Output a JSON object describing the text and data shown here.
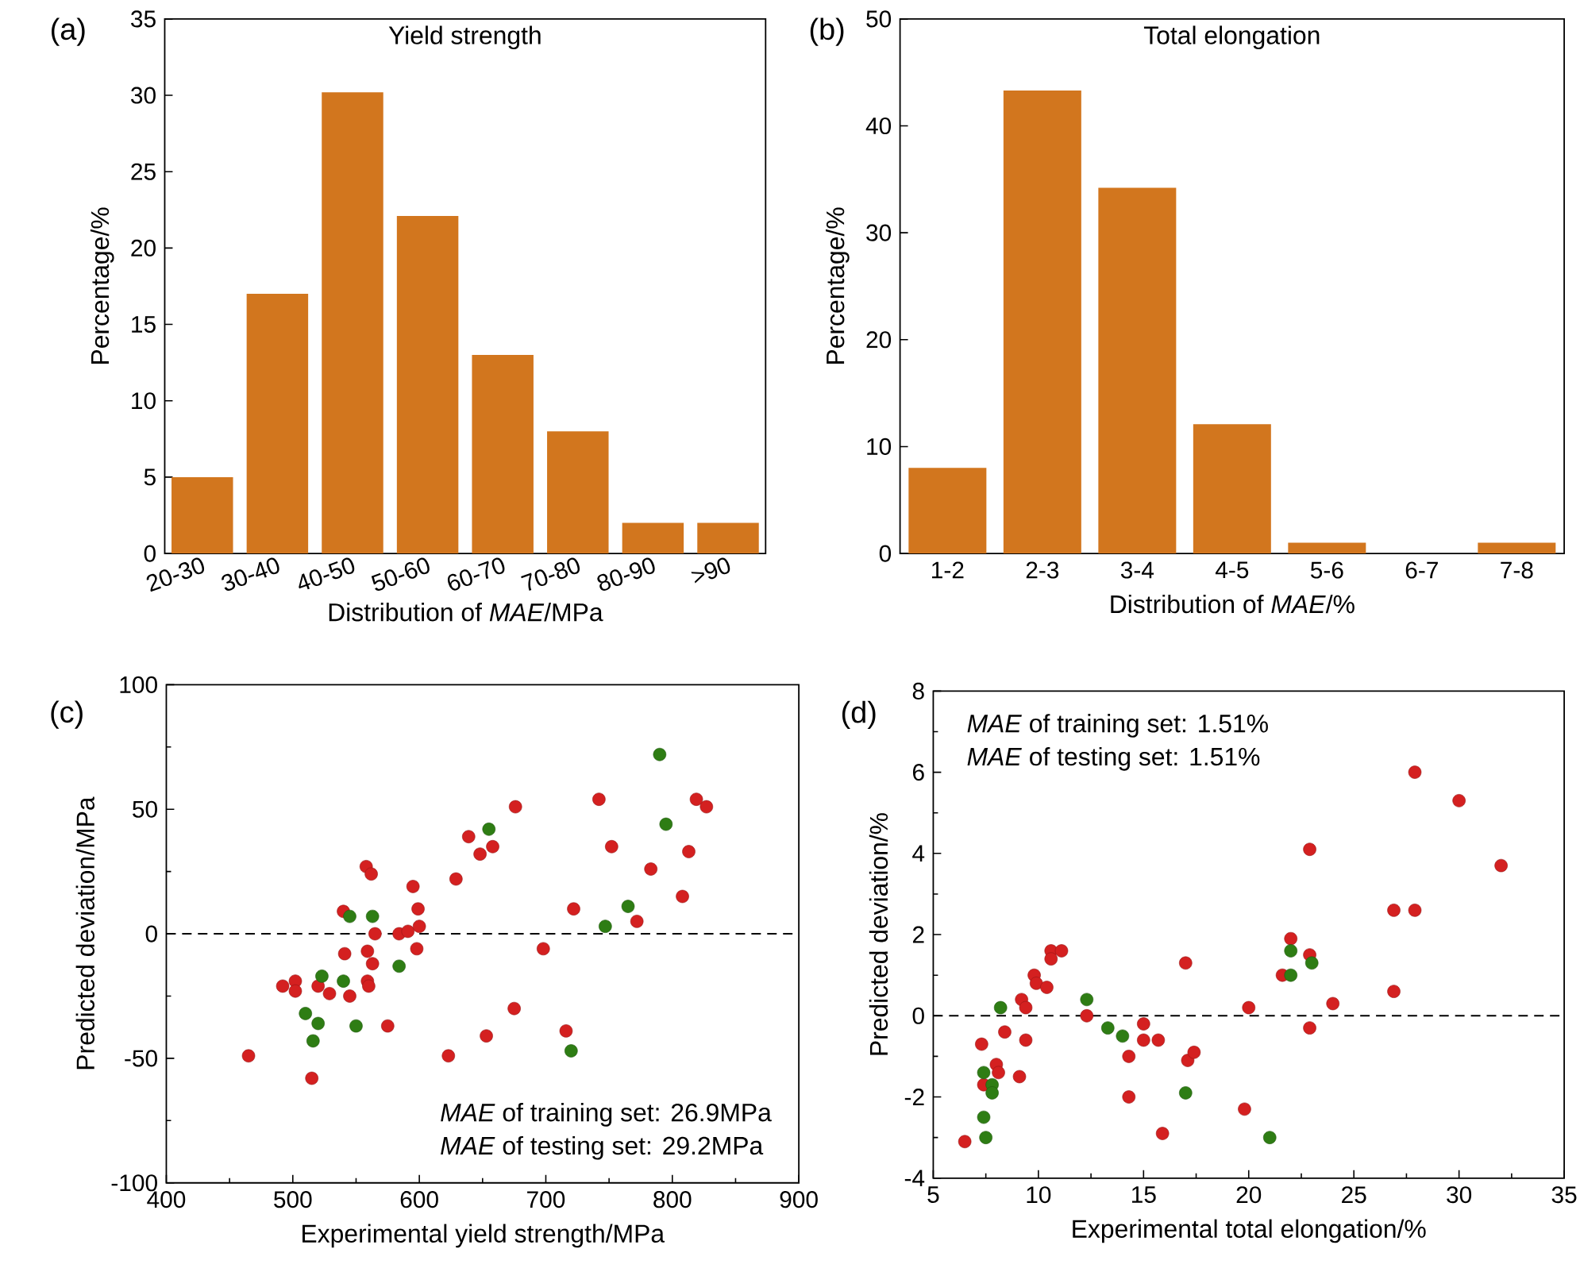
{
  "chart_data": [
    {
      "type": "bar",
      "title": "Yield strength",
      "xlabel": "Distribution of *MAE*/MPa",
      "ylabel": "Percentage/%",
      "categories": [
        "20-30",
        "30-40",
        "40-50",
        "50-60",
        "60-70",
        "70-80",
        "80-90",
        ">90"
      ],
      "values": [
        5,
        17,
        30.2,
        22.1,
        13,
        8,
        2,
        2
      ],
      "color": "#d2761e",
      "ylim": [
        0,
        35
      ],
      "yticks": [
        0,
        5,
        10,
        15,
        20,
        25,
        30,
        35
      ],
      "annotations": [
        "(a)"
      ]
    },
    {
      "type": "bar",
      "title": "Total elongation",
      "xlabel": "Distribution of *MAE*/%",
      "ylabel": "Percentage/%",
      "categories": [
        "1-2",
        "2-3",
        "3-4",
        "4-5",
        "5-6",
        "6-7",
        "7-8"
      ],
      "values": [
        8,
        43.3,
        34.2,
        12.1,
        1,
        0,
        1
      ],
      "color": "#d2761e",
      "ylim": [
        0,
        50
      ],
      "yticks": [
        0,
        10,
        20,
        30,
        40,
        50
      ],
      "annotations": [
        "(b)"
      ]
    },
    {
      "type": "scatter",
      "xlabel": "Experimental yield strength/MPa",
      "ylabel": "Predicted deviation/MPa",
      "xlim": [
        400,
        900
      ],
      "xticks": [
        400,
        500,
        600,
        700,
        800,
        900
      ],
      "ylim": [
        -100,
        100
      ],
      "yticks": [
        -100,
        -50,
        0,
        50,
        100
      ],
      "marker": "circle",
      "series": [
        {
          "color": "#d42020",
          "x": [
            465,
            492,
            502,
            502,
            520,
            529,
            515,
            540,
            541,
            545,
            558,
            562,
            559,
            559,
            560,
            563,
            565,
            575,
            584,
            591,
            595,
            599,
            600,
            598,
            623,
            629,
            639,
            648,
            658,
            653,
            675,
            676,
            698,
            716,
            722,
            742,
            752,
            772,
            783,
            808,
            813,
            819,
            827
          ],
          "values": [
            -49,
            -21,
            -19,
            -23,
            -21,
            -24,
            -58,
            9,
            -8,
            -25,
            27,
            24,
            -7,
            -19,
            -21,
            -12,
            0,
            -37,
            0,
            1,
            19,
            10,
            3,
            -6,
            -49,
            22,
            39,
            32,
            35,
            -41,
            -30,
            51,
            -6,
            -39,
            10,
            54,
            35,
            5,
            26,
            15,
            33,
            54,
            51
          ]
        },
        {
          "color": "#2e7d14",
          "x": [
            545,
            563,
            523,
            540,
            510,
            520,
            516,
            550,
            584,
            655,
            720,
            747,
            765,
            790,
            795
          ],
          "values": [
            7,
            7,
            -17,
            -19,
            -32,
            -36,
            -43,
            -37,
            -13,
            42,
            -47,
            3,
            11,
            72,
            44
          ]
        }
      ],
      "ref_lines": [
        {
          "axis": "y",
          "value": 0,
          "line_style": "dashed",
          "color": "#000000"
        }
      ],
      "annotations": [
        "(c)",
        "*MAE* of training set: 26.9MPa",
        "*MAE* of testing set: 29.2MPa"
      ]
    },
    {
      "type": "scatter",
      "xlabel": "Experimental total elongation/%",
      "ylabel": "Predicted deviation/%",
      "xlim": [
        5,
        35
      ],
      "xticks": [
        5,
        10,
        15,
        20,
        25,
        30,
        35
      ],
      "ylim": [
        -4,
        8
      ],
      "yticks": [
        -4,
        -2,
        0,
        2,
        4,
        6,
        8
      ],
      "marker": "circle",
      "series": [
        {
          "color": "#d42020",
          "x": [
            6.5,
            7.3,
            7.4,
            8.0,
            8.1,
            8.4,
            9.1,
            9.2,
            9.4,
            9.4,
            9.8,
            9.9,
            10.4,
            10.6,
            10.6,
            11.1,
            12.3,
            14.3,
            14.3,
            15.0,
            15.0,
            15.7,
            15.9,
            17.0,
            17.1,
            17.4,
            19.8,
            20.0,
            21.6,
            22.0,
            22.9,
            22.9,
            22.9,
            24.0,
            26.9,
            26.9,
            27.9,
            27.9,
            30.0,
            32.0
          ],
          "values": [
            -3.1,
            -0.7,
            -1.7,
            -1.2,
            -1.4,
            -0.4,
            -1.5,
            0.4,
            0.2,
            -0.6,
            1.0,
            0.8,
            0.7,
            1.6,
            1.4,
            1.6,
            0.0,
            -1.0,
            -2.0,
            -0.2,
            -0.6,
            -0.6,
            -2.9,
            1.3,
            -1.1,
            -0.9,
            -2.3,
            0.2,
            1.0,
            1.9,
            4.1,
            1.5,
            -0.3,
            0.3,
            0.6,
            2.6,
            2.6,
            6.0,
            5.3,
            3.7
          ]
        },
        {
          "color": "#2e7d14",
          "x": [
            7.4,
            7.4,
            7.5,
            7.8,
            7.8,
            8.2,
            12.3,
            13.3,
            14.0,
            17.0,
            21.0,
            22.0,
            22.0,
            23.0
          ],
          "values": [
            -1.4,
            -2.5,
            -3.0,
            -1.7,
            -1.9,
            0.2,
            0.4,
            -0.3,
            -0.5,
            -1.9,
            -3.0,
            1.6,
            1.0,
            1.3
          ]
        }
      ],
      "ref_lines": [
        {
          "axis": "y",
          "value": 0,
          "line_style": "dashed",
          "color": "#000000"
        }
      ],
      "annotations": [
        "(d)",
        "*MAE* of training set: 1.51%",
        "*MAE* of testing set: 1.51%"
      ]
    }
  ]
}
